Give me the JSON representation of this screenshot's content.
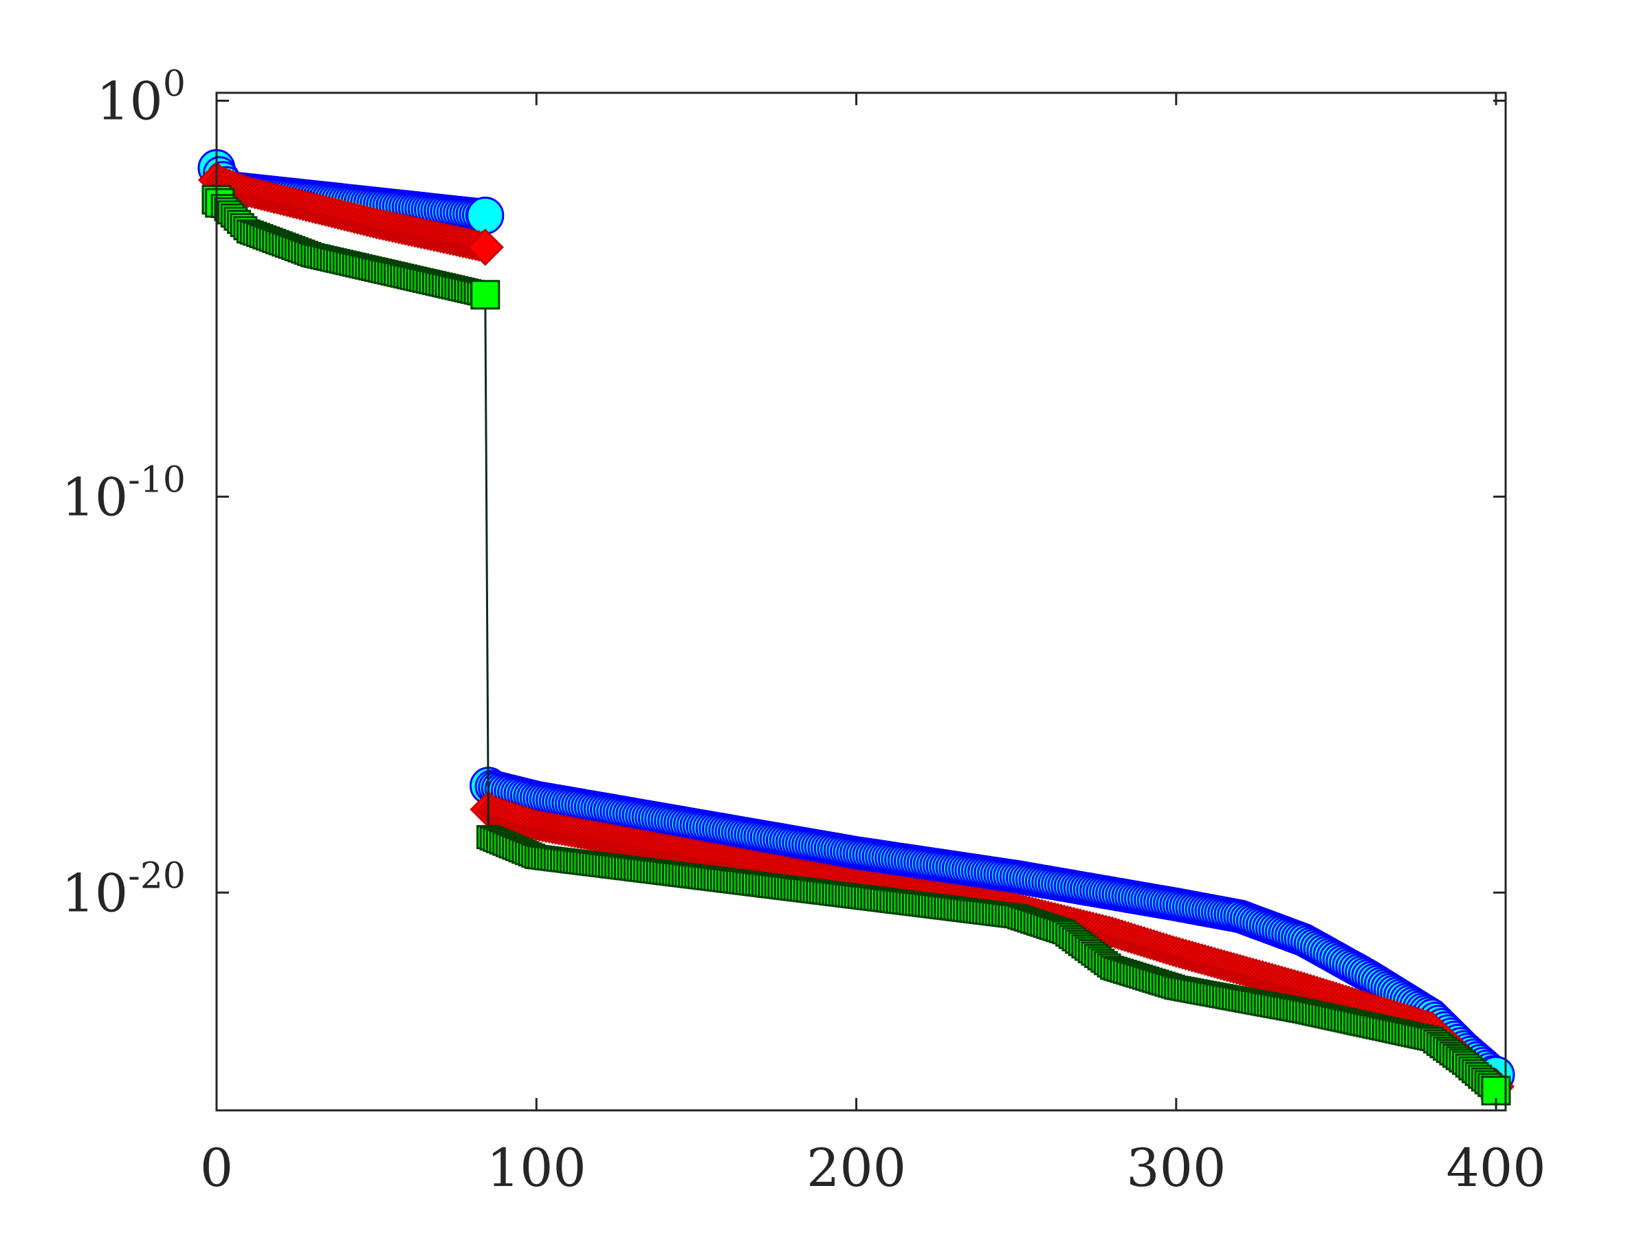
{
  "chart_data": {
    "type": "scatter",
    "title": "",
    "xlabel": "",
    "ylabel": "",
    "xlim": [
      0,
      403
    ],
    "ylim_log10": [
      -25.5,
      0.2
    ],
    "yscale": "log",
    "grid": false,
    "legend": "none",
    "x_ticks": [
      {
        "value": 0,
        "label": "0"
      },
      {
        "value": 100,
        "label": "100"
      },
      {
        "value": 200,
        "label": "200"
      },
      {
        "value": 300,
        "label": "300"
      },
      {
        "value": 400,
        "label": "400"
      }
    ],
    "y_ticks": [
      {
        "log10": 0,
        "base": "10",
        "exp": "0"
      },
      {
        "log10": -10,
        "base": "10",
        "exp": "-10"
      },
      {
        "log10": -20,
        "base": "10",
        "exp": "-20"
      }
    ],
    "series": [
      {
        "marker": "circle",
        "fill_color": "#00FFFF",
        "edge_color": "#0000FF",
        "line_color": "#0000FF",
        "index_range": [
          0,
          400
        ],
        "gap_after_index": 84,
        "log10_knots": [
          [
            0,
            -1.7
          ],
          [
            4,
            -2.2
          ],
          [
            84,
            -2.9
          ],
          [
            85,
            -17.3
          ],
          [
            100,
            -17.6
          ],
          [
            200,
            -19.0
          ],
          [
            250,
            -19.6
          ],
          [
            300,
            -20.3
          ],
          [
            320,
            -20.6
          ],
          [
            340,
            -21.2
          ],
          [
            360,
            -22.1
          ],
          [
            380,
            -23.1
          ],
          [
            390,
            -23.9
          ],
          [
            400,
            -24.6
          ]
        ]
      },
      {
        "marker": "diamond",
        "fill_color": "#FF0000",
        "edge_color": "#CC0000",
        "line_color": "#CC0000",
        "index_range": [
          0,
          400
        ],
        "gap_after_index": 84,
        "log10_knots": [
          [
            0,
            -2.0
          ],
          [
            10,
            -2.3
          ],
          [
            50,
            -3.1
          ],
          [
            84,
            -3.7
          ],
          [
            85,
            -17.9
          ],
          [
            100,
            -18.3
          ],
          [
            200,
            -19.8
          ],
          [
            250,
            -20.4
          ],
          [
            280,
            -21.0
          ],
          [
            300,
            -21.5
          ],
          [
            340,
            -22.4
          ],
          [
            380,
            -23.4
          ],
          [
            400,
            -24.9
          ]
        ]
      },
      {
        "marker": "square",
        "fill_color": "#00FF00",
        "edge_color": "#004000",
        "line_color": "#0B2B1B",
        "index_range": [
          0,
          400
        ],
        "gap_after_index": null,
        "log10_knots": [
          [
            0,
            -2.5
          ],
          [
            10,
            -3.3
          ],
          [
            30,
            -3.9
          ],
          [
            84,
            -4.9
          ],
          [
            85,
            -18.6
          ],
          [
            100,
            -19.1
          ],
          [
            150,
            -19.6
          ],
          [
            200,
            -20.1
          ],
          [
            250,
            -20.6
          ],
          [
            265,
            -21.0
          ],
          [
            280,
            -21.9
          ],
          [
            300,
            -22.4
          ],
          [
            340,
            -23.0
          ],
          [
            380,
            -23.7
          ],
          [
            390,
            -24.3
          ],
          [
            400,
            -25.0
          ]
        ]
      }
    ]
  }
}
